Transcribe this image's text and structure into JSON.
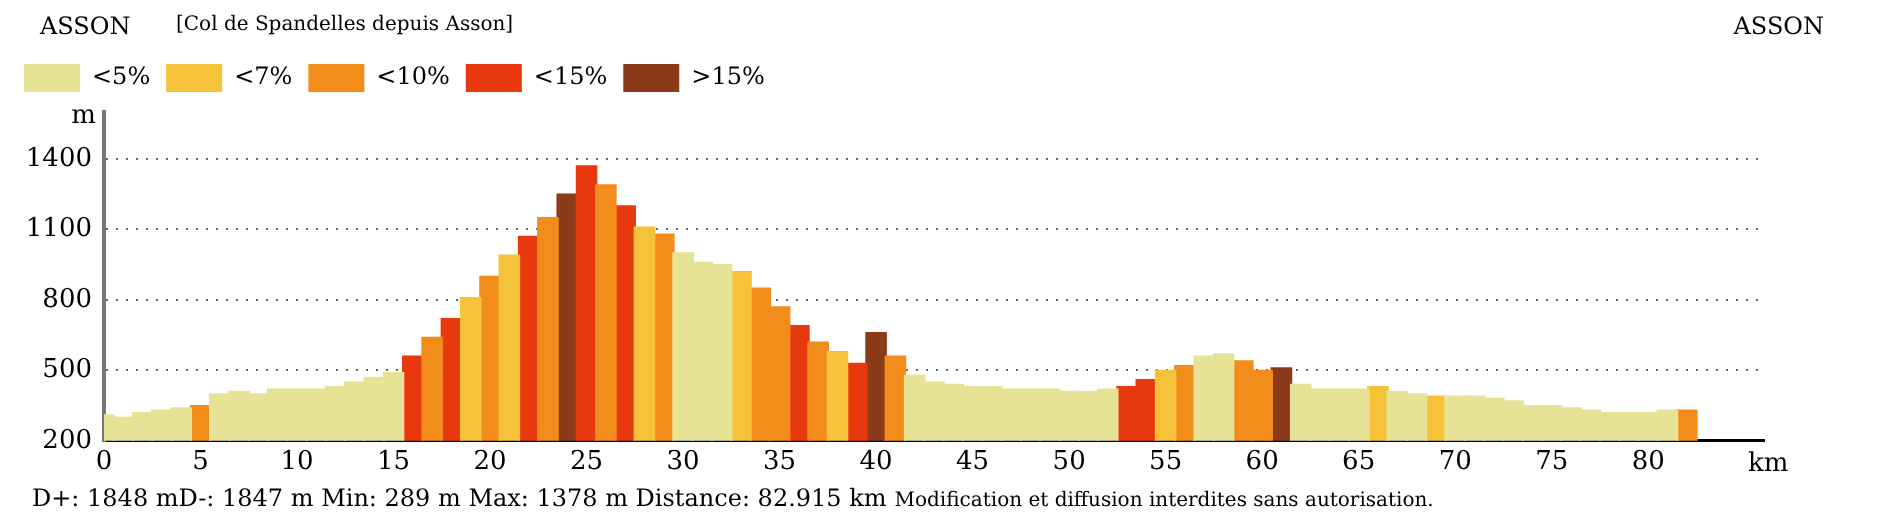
{
  "chart_data": {
    "type": "bar",
    "title": "[Col de Spandelles depuis Asson]",
    "annotations": [
      "ASSON",
      "ASSON",
      "D+: 1848 mD-: 1847 m Min: 289 m  Max: 1378 m  Distance: 82.915 km",
      "Modification et diffusion interdites sans autorisation."
    ],
    "xlabel": "km",
    "ylabel": "m",
    "x": [
      0,
      1,
      2,
      3,
      4,
      5,
      6,
      7,
      8,
      9,
      10,
      11,
      12,
      13,
      14,
      15,
      16,
      17,
      18,
      19,
      20,
      21,
      22,
      23,
      24,
      25,
      26,
      27,
      28,
      29,
      30,
      31,
      32,
      33,
      34,
      35,
      36,
      37,
      38,
      39,
      40,
      41,
      42,
      43,
      44,
      45,
      46,
      47,
      48,
      49,
      50,
      51,
      52,
      53,
      54,
      55,
      56,
      57,
      58,
      59,
      60,
      61,
      62,
      63,
      64,
      65,
      66,
      67,
      68,
      69,
      70,
      71,
      72,
      73,
      74,
      75,
      76,
      77,
      78,
      79,
      80,
      81,
      82
    ],
    "series": [
      {
        "name": "<5%",
        "color": "#e6e396",
        "values": [
          310,
          300,
          320,
          330,
          340,
          null,
          400,
          410,
          400,
          420,
          420,
          420,
          430,
          450,
          470,
          490,
          null,
          null,
          null,
          null,
          null,
          null,
          null,
          null,
          null,
          null,
          null,
          null,
          null,
          null,
          1000,
          960,
          950,
          null,
          null,
          null,
          null,
          null,
          null,
          null,
          null,
          null,
          480,
          450,
          440,
          430,
          430,
          420,
          420,
          420,
          410,
          410,
          420,
          null,
          null,
          null,
          null,
          560,
          570,
          null,
          null,
          null,
          440,
          420,
          420,
          420,
          null,
          410,
          400,
          null,
          390,
          390,
          380,
          370,
          350,
          350,
          340,
          330,
          320,
          320,
          320,
          330,
          null
        ]
      },
      {
        "name": "<7%",
        "color": "#f5c23a",
        "values": [
          null,
          null,
          null,
          null,
          null,
          null,
          null,
          null,
          null,
          null,
          null,
          null,
          null,
          null,
          null,
          null,
          null,
          null,
          null,
          810,
          null,
          990,
          null,
          null,
          null,
          null,
          null,
          null,
          1110,
          null,
          null,
          null,
          null,
          920,
          null,
          null,
          null,
          null,
          580,
          null,
          null,
          null,
          null,
          null,
          null,
          null,
          null,
          null,
          null,
          null,
          null,
          null,
          null,
          null,
          null,
          500,
          null,
          null,
          null,
          null,
          null,
          null,
          null,
          null,
          null,
          null,
          430,
          null,
          null,
          390,
          null,
          null,
          null,
          null,
          null,
          null,
          null,
          null,
          null,
          null,
          null,
          null,
          null
        ]
      },
      {
        "name": "<10%",
        "color": "#f28c1a",
        "values": [
          null,
          null,
          null,
          null,
          null,
          350,
          null,
          null,
          null,
          null,
          null,
          null,
          null,
          null,
          null,
          null,
          null,
          640,
          null,
          null,
          900,
          null,
          null,
          1150,
          null,
          null,
          1290,
          null,
          null,
          1080,
          null,
          null,
          null,
          null,
          850,
          770,
          null,
          620,
          null,
          null,
          null,
          560,
          null,
          null,
          null,
          null,
          null,
          null,
          null,
          null,
          null,
          null,
          null,
          null,
          null,
          null,
          520,
          null,
          null,
          540,
          500,
          null,
          null,
          null,
          null,
          null,
          null,
          null,
          null,
          null,
          null,
          null,
          null,
          null,
          null,
          null,
          null,
          null,
          null,
          null,
          null,
          null,
          330
        ]
      },
      {
        "name": "<15%",
        "color": "#e8380e",
        "values": [
          null,
          null,
          null,
          null,
          null,
          null,
          null,
          null,
          null,
          null,
          null,
          null,
          null,
          null,
          null,
          null,
          560,
          null,
          720,
          null,
          null,
          null,
          1070,
          null,
          null,
          1370,
          null,
          1200,
          null,
          null,
          null,
          null,
          null,
          null,
          null,
          null,
          690,
          null,
          null,
          530,
          null,
          null,
          null,
          null,
          null,
          null,
          null,
          null,
          null,
          null,
          null,
          null,
          null,
          430,
          460,
          null,
          null,
          null,
          null,
          null,
          null,
          null,
          null,
          null,
          null,
          null,
          null,
          null,
          null,
          null,
          null,
          null,
          null,
          null,
          null,
          null,
          null,
          null,
          null,
          null,
          null,
          null,
          null
        ]
      },
      {
        "name": ">15%",
        "color": "#8b3a1a",
        "values": [
          null,
          null,
          null,
          null,
          null,
          null,
          null,
          null,
          null,
          null,
          null,
          null,
          null,
          null,
          null,
          null,
          null,
          null,
          null,
          null,
          null,
          null,
          null,
          null,
          1250,
          null,
          null,
          null,
          null,
          null,
          null,
          null,
          null,
          null,
          null,
          null,
          null,
          null,
          null,
          null,
          660,
          null,
          null,
          null,
          null,
          null,
          null,
          null,
          null,
          null,
          null,
          null,
          null,
          null,
          null,
          null,
          null,
          null,
          null,
          null,
          null,
          510,
          null,
          null,
          null,
          null,
          null,
          null,
          null,
          null,
          null,
          null,
          null,
          null,
          null,
          null,
          null,
          null,
          null,
          null,
          null,
          null,
          null
        ]
      }
    ],
    "xlim": [
      0,
      86
    ],
    "xticks": [
      0,
      5,
      10,
      15,
      20,
      25,
      30,
      35,
      40,
      45,
      50,
      55,
      60,
      65,
      70,
      75,
      80
    ],
    "ylim": [
      200,
      1600
    ],
    "yticks": [
      200,
      500,
      800,
      1100,
      1400
    ],
    "grid": "y",
    "legend": "top left"
  }
}
